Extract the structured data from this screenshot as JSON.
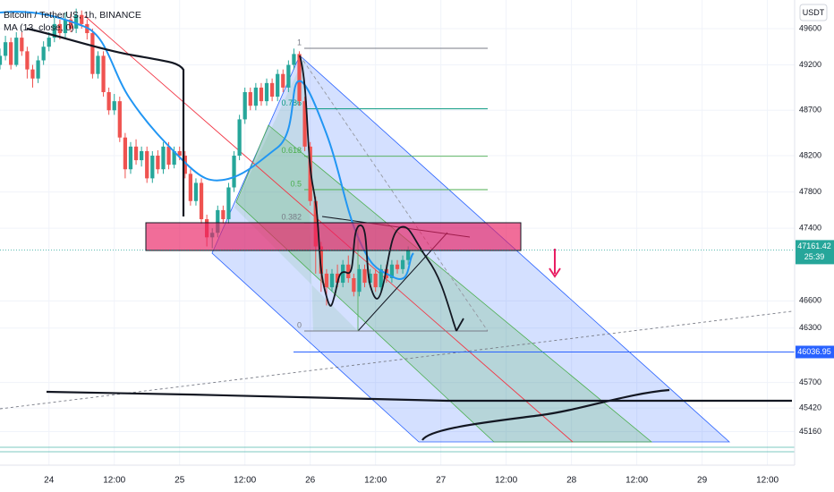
{
  "chart_data": {
    "type": "candlestick",
    "title": "Bitcoin / TetherUS, 1h, BINANCE",
    "indicator": "MA (13, close, 0)",
    "currency": "USDT",
    "up_color": "#26a69a",
    "down_color": "#ef5350",
    "x": [
      -9,
      -8,
      -7,
      -6,
      -5,
      -4,
      -3,
      -2,
      -1,
      0,
      1,
      2,
      3,
      4,
      5,
      6,
      7,
      8,
      9,
      10,
      11,
      12,
      13,
      14,
      15,
      16,
      17,
      18,
      19,
      20,
      21,
      22,
      23,
      24,
      25,
      26,
      27,
      28,
      29,
      30,
      31,
      32,
      33,
      34,
      35,
      36,
      37,
      38,
      39,
      40,
      41,
      42,
      43,
      44,
      45,
      46,
      47,
      48,
      49,
      50,
      51,
      52,
      53,
      54,
      55,
      56,
      57,
      58,
      59,
      60,
      61,
      62,
      63,
      64,
      65,
      66
    ],
    "ohlc": [
      [
        49200,
        49380,
        49150,
        49300
      ],
      [
        49300,
        49520,
        49250,
        49450
      ],
      [
        49450,
        49500,
        49150,
        49200
      ],
      [
        49200,
        49560,
        49180,
        49500
      ],
      [
        49500,
        49560,
        49300,
        49350
      ],
      [
        49350,
        49400,
        49050,
        49150
      ],
      [
        49150,
        49200,
        48950,
        49050
      ],
      [
        49050,
        49300,
        49000,
        49250
      ],
      [
        49250,
        49460,
        49200,
        49400
      ],
      [
        49400,
        49560,
        49350,
        49500
      ],
      [
        49500,
        49720,
        49450,
        49650
      ],
      [
        49650,
        49700,
        49480,
        49550
      ],
      [
        49550,
        49780,
        49500,
        49700
      ],
      [
        49700,
        49760,
        49560,
        49600
      ],
      [
        49600,
        49820,
        49550,
        49750
      ],
      [
        49750,
        49800,
        49600,
        49650
      ],
      [
        49650,
        49700,
        49480,
        49550
      ],
      [
        49550,
        49600,
        49050,
        49100
      ],
      [
        49100,
        49350,
        49050,
        49300
      ],
      [
        49300,
        49350,
        48850,
        48900
      ],
      [
        48900,
        48950,
        48650,
        48700
      ],
      [
        48700,
        48880,
        48650,
        48800
      ],
      [
        48800,
        48850,
        48350,
        48400
      ],
      [
        48400,
        48450,
        47950,
        48050
      ],
      [
        48050,
        48350,
        48000,
        48300
      ],
      [
        48300,
        48380,
        48100,
        48150
      ],
      [
        48150,
        48300,
        48080,
        48250
      ],
      [
        48250,
        48300,
        47900,
        47950
      ],
      [
        47950,
        48250,
        47900,
        48200
      ],
      [
        48200,
        48260,
        48000,
        48050
      ],
      [
        48050,
        48350,
        48000,
        48300
      ],
      [
        48300,
        48350,
        48050,
        48100
      ],
      [
        48100,
        48300,
        48060,
        48250
      ],
      [
        48250,
        48300,
        48150,
        48200
      ],
      [
        48200,
        48250,
        47950,
        48000
      ],
      [
        48000,
        48050,
        47650,
        47700
      ],
      [
        47700,
        47950,
        47650,
        47900
      ],
      [
        47900,
        47950,
        47450,
        47500
      ],
      [
        47500,
        47550,
        47200,
        47300
      ],
      [
        47300,
        47400,
        47180,
        47350
      ],
      [
        47350,
        47650,
        47300,
        47600
      ],
      [
        47600,
        47650,
        47450,
        47500
      ],
      [
        47500,
        47900,
        47450,
        47850
      ],
      [
        47850,
        48250,
        47800,
        48200
      ],
      [
        48200,
        48650,
        48150,
        48600
      ],
      [
        48600,
        48950,
        48550,
        48900
      ],
      [
        48900,
        48950,
        48700,
        48750
      ],
      [
        48750,
        49000,
        48700,
        48950
      ],
      [
        48950,
        49000,
        48750,
        48800
      ],
      [
        48800,
        49050,
        48750,
        49000
      ],
      [
        49000,
        49050,
        48800,
        48850
      ],
      [
        48850,
        49150,
        48800,
        49100
      ],
      [
        49100,
        49150,
        48900,
        48950
      ],
      [
        48950,
        49250,
        48900,
        49200
      ],
      [
        49200,
        49380,
        49150,
        49320
      ],
      [
        49320,
        49350,
        48750,
        48800
      ],
      [
        48800,
        48850,
        48250,
        48300
      ],
      [
        48300,
        48350,
        47650,
        47700
      ],
      [
        47700,
        47750,
        46900,
        47200
      ],
      [
        47200,
        47250,
        46700,
        46900
      ],
      [
        46900,
        46950,
        46550,
        46750
      ],
      [
        46750,
        46950,
        46700,
        46900
      ],
      [
        46900,
        47000,
        46750,
        46800
      ],
      [
        46800,
        47050,
        46750,
        47000
      ],
      [
        47000,
        47100,
        46800,
        46850
      ],
      [
        46850,
        46900,
        46650,
        46700
      ],
      [
        46700,
        47000,
        46650,
        46950
      ],
      [
        46950,
        47000,
        46750,
        46800
      ],
      [
        46800,
        46950,
        46750,
        46900
      ],
      [
        46900,
        46950,
        46700,
        46750
      ],
      [
        46750,
        47000,
        46700,
        46950
      ],
      [
        46950,
        47000,
        46800,
        46850
      ],
      [
        46850,
        47050,
        46800,
        47000
      ],
      [
        47000,
        47050,
        46900,
        46950
      ],
      [
        46950,
        47100,
        46900,
        47050
      ],
      [
        47050,
        47200,
        47000,
        47161.42
      ]
    ],
    "xlim": [
      -9,
      137
    ],
    "xticks": [
      {
        "value": 0,
        "label": "24"
      },
      {
        "value": 12,
        "label": "12:00"
      },
      {
        "value": 24,
        "label": "25"
      },
      {
        "value": 36,
        "label": "12:00"
      },
      {
        "value": 48,
        "label": "26"
      },
      {
        "value": 60,
        "label": "12:00"
      },
      {
        "value": 72,
        "label": "27"
      },
      {
        "value": 84,
        "label": "12:00"
      },
      {
        "value": 96,
        "label": "28"
      },
      {
        "value": 108,
        "label": "12:00"
      },
      {
        "value": 120,
        "label": "29"
      },
      {
        "value": 132,
        "label": "12:00"
      }
    ],
    "ylim": [
      44790,
      49915
    ],
    "yticks": [
      49600,
      49200,
      48700,
      48200,
      47800,
      47400,
      46600,
      46300,
      45700,
      45420,
      45160
    ],
    "last_price": 47161.42,
    "countdown": "25:39",
    "level_price": 46036.95,
    "fib_levels": [
      1,
      0.786,
      0.618,
      0.5,
      0.382,
      0
    ]
  }
}
